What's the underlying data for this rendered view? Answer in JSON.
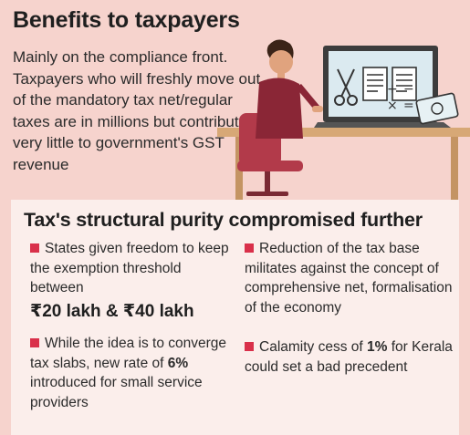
{
  "header": {
    "title": "Benefits to taxpayers",
    "intro": "Mainly on the compliance front. Taxpayers who will freshly move out of the mandatory tax net/regular taxes are in millions but contribute very little to government's GST revenue"
  },
  "illustration": {
    "icons": [
      "scissors-icon",
      "document-icon",
      "calculator-symbols-icon",
      "currency-note-icon"
    ],
    "calc_symbols": [
      "+",
      "−",
      "×",
      "="
    ]
  },
  "panel": {
    "title": "Tax's structural purity compromised further",
    "left_points": [
      {
        "text": "States given freedom to keep the exemption threshold between",
        "amount": "₹20 lakh & ₹40 lakh"
      },
      {
        "pre": "While the idea is to converge tax slabs, new rate of ",
        "bold": "6%",
        "post": " introduced for small service providers"
      }
    ],
    "right_points": [
      {
        "text": "Reduction of the tax base militates against the concept of comprehensive net, formalisation of the economy"
      },
      {
        "pre": "Calamity cess of ",
        "bold": "1%",
        "post": " for Kerala could set a bad precedent"
      }
    ]
  },
  "colors": {
    "background": "#f6d3cd",
    "panel": "#fbeeeb",
    "bullet": "#d9304a",
    "shirt": "#8a2636",
    "desk": "#d7a876"
  }
}
